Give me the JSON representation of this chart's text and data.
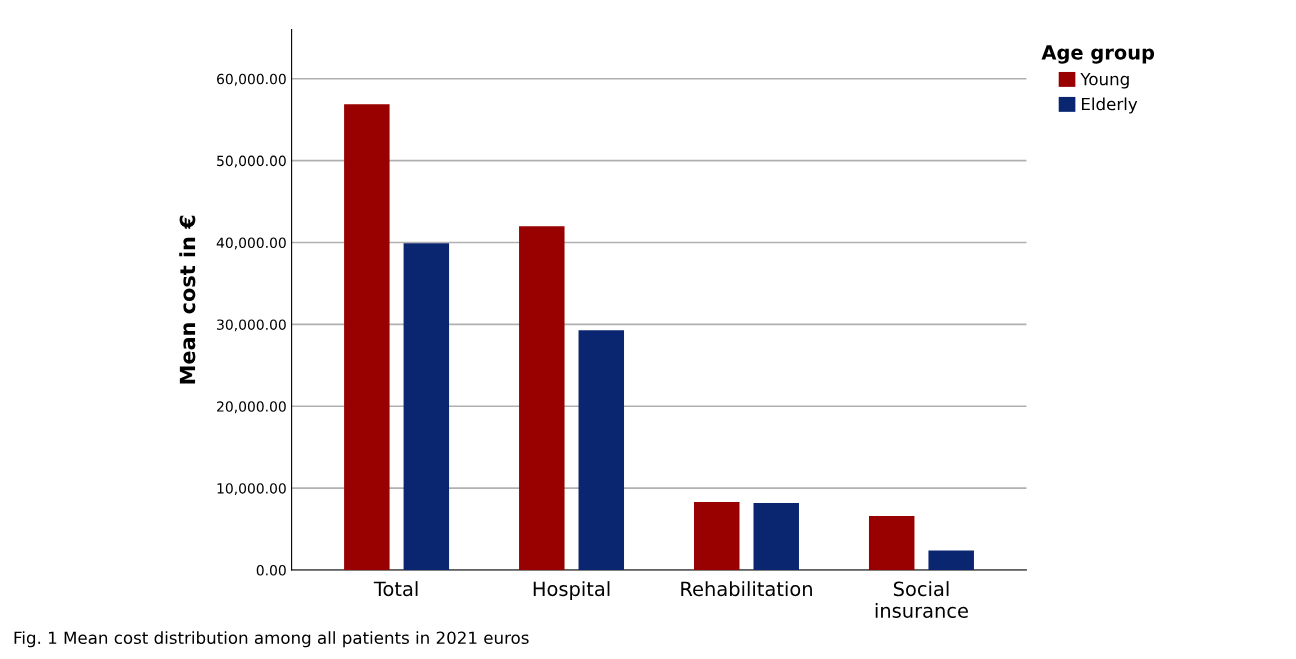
{
  "chart_data": {
    "type": "bar",
    "ylabel": "Mean cost in €",
    "categories": [
      "Total",
      "Hospital",
      "Rehabilitation",
      "Social\ninsurance"
    ],
    "series": [
      {
        "name": "Young",
        "color": "#990000",
        "values": [
          56900,
          42000,
          8300,
          6600
        ]
      },
      {
        "name": "Elderly",
        "color": "#0a2670",
        "values": [
          39900,
          29300,
          8200,
          2400
        ]
      }
    ],
    "ylim": [
      0,
      66000
    ],
    "yticks": [
      {
        "value": 0,
        "label": "0.00"
      },
      {
        "value": 10000,
        "label": "10,000.00"
      },
      {
        "value": 20000,
        "label": "20,000.00"
      },
      {
        "value": 30000,
        "label": "30,000.00"
      },
      {
        "value": 40000,
        "label": "40,000.00"
      },
      {
        "value": 50000,
        "label": "50,000.00"
      },
      {
        "value": 60000,
        "label": "60,000.00"
      }
    ],
    "grid": "y",
    "legend": "top right",
    "legend_title": "Age group",
    "annotations": [
      "Fig. 1 Mean cost distribution among all patients in 2021 euros"
    ]
  }
}
